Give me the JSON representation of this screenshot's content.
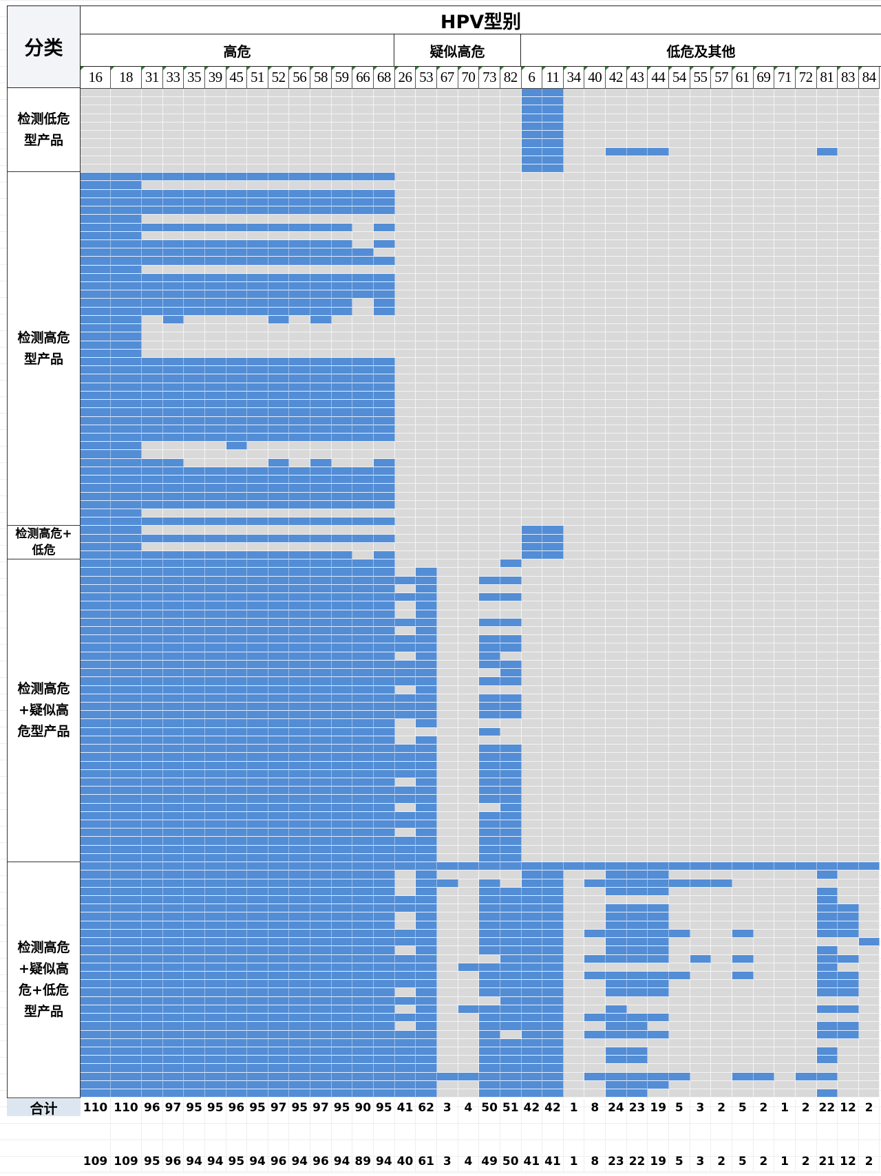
{
  "header": {
    "corner_label": "分类",
    "title": "HPV型别",
    "categories": [
      {
        "label": "高危",
        "span": 14
      },
      {
        "label": "疑似高危",
        "span": 6
      },
      {
        "label": "低危及其他",
        "span": 17
      }
    ]
  },
  "columns": [
    "16",
    "18",
    "31",
    "33",
    "35",
    "39",
    "45",
    "51",
    "52",
    "56",
    "58",
    "59",
    "66",
    "68",
    "26",
    "53",
    "67",
    "70",
    "73",
    "82",
    "6",
    "11",
    "34",
    "40",
    "42",
    "43",
    "44",
    "54",
    "55",
    "57",
    "61",
    "69",
    "71",
    "72",
    "81",
    "83",
    "84"
  ],
  "sections": [
    {
      "label": "检测低危\n型产品",
      "rows": 10
    },
    {
      "label": "检测高危\n型产品",
      "rows": 42
    },
    {
      "label": "检测高危+\n低危",
      "rows": 4
    },
    {
      "label": "检测高危\n+疑似高\n危型产品",
      "rows": 36
    },
    {
      "label": "检测高危\n+疑似高\n危+低危\n型产品",
      "rows": 28
    }
  ],
  "colors": {
    "positive": "#538dd5",
    "negative": "#d9d9d9",
    "total_label_bg": "#dce6f1"
  },
  "matrix": [
    "00000000000000 000000 11000000000000000",
    "00000000000000 000000 11000000000000000",
    "00000000000000 000000 11000000000000000",
    "00000000000000 000000 11000000000000000",
    "00000000000000 000000 11000000000000000",
    "00000000000000 000000 11000000000000000",
    "00000000000000 000000 11000000000000000",
    "00000000000000 000000 11001110000000100",
    "00000000000000 000000 11000000000000000",
    "00000000000000 000000 11000000000000000",
    "11111111111111 000000 00000000000000000",
    "11000000000000 000000 00000000000000000",
    "11111111111111 000000 00000000000000000",
    "11111111111111 000000 00000000000000000",
    "11111111111111 000000 00000000000000000",
    "11000000000000 000000 00000000000000000",
    "11111111111101 000000 00000000000000000",
    "11000000000000 000000 00000000000000000",
    "11111111111101 000000 00000000000000000",
    "11111111111110 000000 00000000000000000",
    "11111111111111 000000 00000000000000000",
    "11000000000000 000000 00000000000000000",
    "11111111111111 000000 00000000000000000",
    "11111111111111 000000 00000000000000000",
    "11111111111111 000000 00000000000000000",
    "11111111111101 000000 00000000000000000",
    "11111111111101 000000 00000000000000000",
    "11010000101000 000000 00000000000000000",
    "11000000000000 000000 00000000000000000",
    "11000000000000 000000 00000000000000000",
    "11000000000000 000000 00000000000000000",
    "11000000000000 000000 00000000000000000",
    "11111111111111 000000 00000000000000000",
    "11111111111111 000000 00000000000000000",
    "11111111111111 000000 00000000000000000",
    "11111111111111 000000 00000000000000000",
    "11111111111111 000000 00000000000000000",
    "11111111111111 000000 00000000000000000",
    "11111111111111 000000 00000000000000000",
    "11111111111111 000000 00000000000000000",
    "11111111111111 000000 00000000000000000",
    "11111111111111 000000 00000000000000000",
    "11000010000000 000000 00000000000000000",
    "11000000000000 000000 00000000000000000",
    "11110000101001 000000 00000000000000000",
    "11111111111111 000000 00000000000000000",
    "11111111111111 000000 00000000000000000",
    "11111111111111 000000 00000000000000000",
    "11111111111111 000000 00000000000000000",
    "11111111111111 000000 00000000000000000",
    "11000000000000 000000 00000000000000000",
    "11111111111111 000000 00000000000000000",
    "11000000000000 000000 11000000000000000",
    "11111111111111 000000 11000000000000000",
    "11000000000000 000000 11000000000000000",
    "11111111111101 000000 11000000000000000",
    "11111111111111 000001 00000000000000000",
    "11111111111111 010000 00000000000000000",
    "11111111111111 110011 00000000000000000",
    "11111111111111 010000 00000000000000000",
    "11111111111111 110011 00000000000000000",
    "11111111111111 010000 00000000000000000",
    "11111111111111 010000 00000000000000000",
    "11111111111111 110011 00000000000000000",
    "11111111111111 010000 00000000000000000",
    "11111111111111 110011 00000000000000000",
    "11111111111111 110011 00000000000000000",
    "11111111111111 010010 00000000000000000",
    "11111111111111 110011 00000000000000000",
    "11111111111111 110001 00000000000000000",
    "11111111111111 110011 00000000000000000",
    "11111111111111 010000 00000000000000000",
    "11111111111111 110011 00000000000000000",
    "11111111111111 110011 00000000000000000",
    "11111111111111 110011 00000000000000000",
    "11111111111111 010000 00000000000000000",
    "11111111111111 000010 00000000000000000",
    "11111111111111 010000 00000000000000000",
    "11111111111111 110011 00000000000000000",
    "11111111111111 110011 00000000000000000",
    "11111111111111 110011 00000000000000000",
    "11111111111111 110011 00000000000000000",
    "11111111111111 010011 00000000000000000",
    "11111111111111 110011 00000000000000000",
    "11111111111111 110011 00000000000000000",
    "11111111111111 010001 00000000000000000",
    "11111111111111 110011 00000000000000000",
    "11111111111111 110011 00000000000000000",
    "11111111111111 010011 00000000000000000",
    "11111111111111 110011 00000000000000000",
    "11111111111111 110011 00000000000000000",
    "11111111111111 110011 00000000000000000",
    "11111111111111 111111 11111111111111111",
    "11111111111111 010000 11001110000000100",
    "11111111111111 011010 11011111110000000",
    "11111111111111 010011 11001110000000100",
    "11111111111111 110011 11000000000000100",
    "11111111111111 110011 11001110000000110",
    "11111111111111 010011 11001110000000110",
    "11111111111111 010011 11001110000000110",
    "11111111111111 110011 11011111001000110",
    "11111111111111 110011 11001110000000001",
    "11111111111111 010011 11001110000000100",
    "11111111111111 110001 11011110101000110",
    "11111111111111 110111 11000000000000100",
    "11111111111111 110011 11011111001000110",
    "11111111111111 110011 11001110000000110",
    "11111111111111 010011 11001110000000110",
    "11111111111111 110001 11000000000000000",
    "11111111111111 010111 11001000000000110",
    "11111111111111 110011 11011110000000000",
    "11111111111111 010011 11001100000000110",
    "11111111111111 110010 11011110000000110",
    "11111111111111 110011 11000000000000000",
    "11111111111111 110011 11001100000000100",
    "11111111111111 110011 11001100000000100",
    "11111111111111 110011 11000000000000000",
    "11111111111111 111111 11011111001101100",
    "11111111111111 110011 11001110000000000",
    "11111111111111 110011 11001100000000100"
  ],
  "totals": {
    "label": "合计",
    "values": [
      "110",
      "110",
      "96",
      "97",
      "95",
      "95",
      "96",
      "95",
      "97",
      "95",
      "97",
      "95",
      "90",
      "95",
      "41",
      "62",
      "3",
      "4",
      "50",
      "51",
      "42",
      "42",
      "1",
      "8",
      "24",
      "23",
      "19",
      "5",
      "3",
      "2",
      "5",
      "2",
      "1",
      "2",
      "22",
      "12",
      "2"
    ],
    "values_2": [
      "109",
      "109",
      "95",
      "96",
      "94",
      "94",
      "95",
      "94",
      "96",
      "94",
      "96",
      "94",
      "89",
      "94",
      "40",
      "61",
      "3",
      "4",
      "49",
      "50",
      "41",
      "41",
      "1",
      "8",
      "23",
      "22",
      "19",
      "5",
      "3",
      "2",
      "5",
      "2",
      "1",
      "2",
      "21",
      "12",
      "2"
    ]
  }
}
